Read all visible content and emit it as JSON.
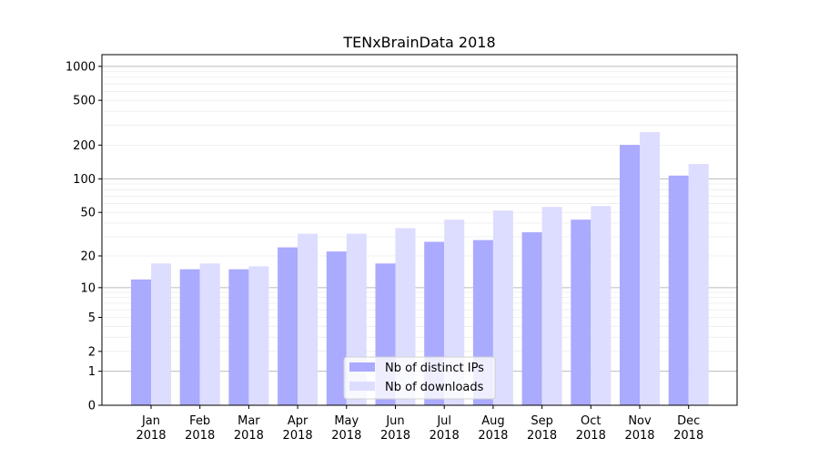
{
  "chart_data": {
    "type": "bar",
    "title": "TENxBrainData 2018",
    "xlabel": "",
    "ylabel": "",
    "y_scale": "log(1+y)",
    "ylim": [
      0,
      1270
    ],
    "yticks": [
      0,
      1,
      2,
      5,
      10,
      20,
      50,
      100,
      200,
      500,
      1000
    ],
    "grid": true,
    "legend_position": "bottom-center",
    "categories": [
      "Jan\n2018",
      "Feb\n2018",
      "Mar\n2018",
      "Apr\n2018",
      "May\n2018",
      "Jun\n2018",
      "Jul\n2018",
      "Aug\n2018",
      "Sep\n2018",
      "Oct\n2018",
      "Nov\n2018",
      "Dec\n2018"
    ],
    "series": [
      {
        "name": "Nb of distinct IPs",
        "color": "#aaaaff",
        "values": [
          12,
          15,
          15,
          24,
          22,
          17,
          27,
          28,
          33,
          43,
          201,
          107
        ]
      },
      {
        "name": "Nb of downloads",
        "color": "#ddddff",
        "values": [
          17,
          17,
          16,
          32,
          32,
          36,
          43,
          52,
          56,
          57,
          261,
          136
        ]
      }
    ]
  }
}
